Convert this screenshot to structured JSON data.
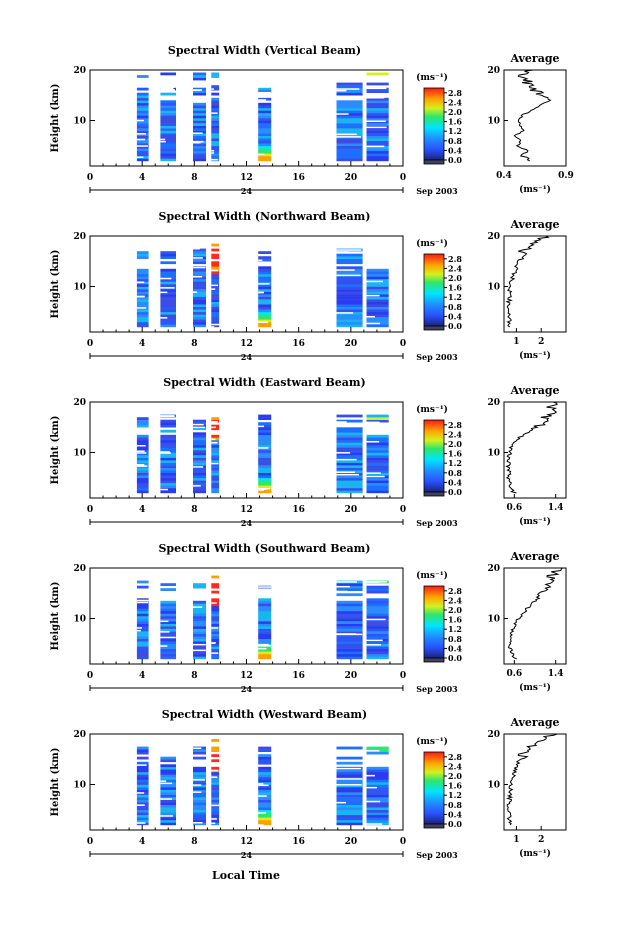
{
  "chart_data": [
    {
      "type": "heatmap",
      "title": "Spectral Width (Vertical Beam)",
      "ylabel": "Height (km)",
      "x_ticks": [
        "0",
        "4",
        "8",
        "12",
        "16",
        "20",
        "0"
      ],
      "y_ticks": [
        "20",
        "10"
      ],
      "xlim": [
        0,
        24
      ],
      "ylim": [
        1,
        20
      ],
      "date_label": "24",
      "month_label": "Sep 2003",
      "colorbar": {
        "unit": "(ms⁻¹)",
        "ticks": [
          "2.8",
          "2.4",
          "2.0",
          "1.6",
          "1.2",
          "0.8",
          "0.4",
          "0.0"
        ],
        "range": [
          0,
          3.0
        ]
      },
      "average": {
        "title": "Average",
        "xlabel": "(ms⁻¹)",
        "x_ticks": [
          "0.4",
          "0.9"
        ],
        "xlim": [
          0.4,
          0.9
        ],
        "y_ticks": [
          "20",
          "10"
        ],
        "height": [
          2,
          3,
          4,
          5,
          6,
          7,
          8,
          9,
          10,
          11,
          12,
          13,
          14,
          15,
          16,
          17,
          18,
          19,
          20
        ],
        "value": [
          0.62,
          0.55,
          0.58,
          0.52,
          0.54,
          0.5,
          0.55,
          0.53,
          0.5,
          0.55,
          0.62,
          0.7,
          0.78,
          0.72,
          0.65,
          0.6,
          0.58,
          0.55,
          0.6
        ]
      }
    },
    {
      "type": "heatmap",
      "title": "Spectral Width (Northward Beam)",
      "ylabel": "Height (km)",
      "x_ticks": [
        "0",
        "4",
        "8",
        "12",
        "16",
        "20",
        "0"
      ],
      "y_ticks": [
        "20",
        "10"
      ],
      "xlim": [
        0,
        24
      ],
      "ylim": [
        1,
        20
      ],
      "date_label": "24",
      "month_label": "Sep 2003",
      "colorbar": {
        "unit": "(ms⁻¹)",
        "ticks": [
          "2.8",
          "2.4",
          "2.0",
          "1.6",
          "1.2",
          "0.8",
          "0.4",
          "0.0"
        ],
        "range": [
          0,
          3.0
        ]
      },
      "average": {
        "title": "Average",
        "xlabel": "(ms⁻¹)",
        "x_ticks": [
          "1",
          "2"
        ],
        "xlim": [
          0.5,
          3.0
        ],
        "y_ticks": [
          "20",
          "10"
        ],
        "height": [
          2,
          3,
          4,
          5,
          6,
          7,
          8,
          9,
          10,
          11,
          12,
          13,
          14,
          15,
          16,
          17,
          18,
          19,
          20
        ],
        "value": [
          0.75,
          0.7,
          0.72,
          0.7,
          0.72,
          0.7,
          0.75,
          0.72,
          0.78,
          0.8,
          0.85,
          0.95,
          1.0,
          1.1,
          1.2,
          1.3,
          1.45,
          1.8,
          2.4
        ]
      }
    },
    {
      "type": "heatmap",
      "title": "Spectral Width (Eastward Beam)",
      "ylabel": "Height (km)",
      "x_ticks": [
        "0",
        "4",
        "8",
        "12",
        "16",
        "20",
        "0"
      ],
      "y_ticks": [
        "20",
        "10"
      ],
      "xlim": [
        0,
        24
      ],
      "ylim": [
        1,
        20
      ],
      "date_label": "24",
      "month_label": "Sep 2003",
      "colorbar": {
        "unit": "(ms⁻¹)",
        "ticks": [
          "2.8",
          "2.4",
          "2.0",
          "1.6",
          "1.2",
          "0.8",
          "0.4",
          "0.0"
        ],
        "range": [
          0,
          3.0
        ]
      },
      "average": {
        "title": "Average",
        "xlabel": "(ms⁻¹)",
        "x_ticks": [
          "0.6",
          "1.4"
        ],
        "xlim": [
          0.4,
          1.6
        ],
        "y_ticks": [
          "20",
          "10"
        ],
        "height": [
          2,
          3,
          4,
          5,
          6,
          7,
          8,
          9,
          10,
          11,
          12,
          13,
          14,
          15,
          16,
          17,
          18,
          19,
          20
        ],
        "value": [
          0.6,
          0.52,
          0.5,
          0.48,
          0.5,
          0.48,
          0.5,
          0.5,
          0.52,
          0.55,
          0.6,
          0.7,
          0.85,
          1.0,
          1.25,
          1.2,
          1.35,
          1.3,
          1.4
        ]
      }
    },
    {
      "type": "heatmap",
      "title": "Spectral Width (Southward Beam)",
      "ylabel": "Height (km)",
      "x_ticks": [
        "0",
        "4",
        "8",
        "12",
        "16",
        "20",
        "0"
      ],
      "y_ticks": [
        "20",
        "10"
      ],
      "xlim": [
        0,
        24
      ],
      "ylim": [
        1,
        20
      ],
      "date_label": "24",
      "month_label": "Sep 2003",
      "colorbar": {
        "unit": "(ms⁻¹)",
        "ticks": [
          "2.8",
          "2.4",
          "2.0",
          "1.6",
          "1.2",
          "0.8",
          "0.4",
          "0.0"
        ],
        "range": [
          0,
          3.0
        ]
      },
      "average": {
        "title": "Average",
        "xlabel": "(ms⁻¹)",
        "x_ticks": [
          "0.6",
          "1.4"
        ],
        "xlim": [
          0.4,
          1.6
        ],
        "y_ticks": [
          "20",
          "10"
        ],
        "height": [
          2,
          3,
          4,
          5,
          6,
          7,
          8,
          9,
          10,
          11,
          12,
          13,
          14,
          15,
          16,
          17,
          18,
          19,
          20
        ],
        "value": [
          0.62,
          0.55,
          0.52,
          0.5,
          0.52,
          0.55,
          0.58,
          0.62,
          0.68,
          0.75,
          0.85,
          0.95,
          1.05,
          1.1,
          1.2,
          1.25,
          1.3,
          1.35,
          1.45
        ]
      }
    },
    {
      "type": "heatmap",
      "title": "Spectral Width (Westward Beam)",
      "ylabel": "Height (km)",
      "xlabel": "Local Time",
      "x_ticks": [
        "0",
        "4",
        "8",
        "12",
        "16",
        "20",
        "0"
      ],
      "y_ticks": [
        "20",
        "10"
      ],
      "xlim": [
        0,
        24
      ],
      "ylim": [
        1,
        20
      ],
      "date_label": "24",
      "month_label": "Sep 2003",
      "colorbar": {
        "unit": "(ms⁻¹)",
        "ticks": [
          "2.8",
          "2.4",
          "2.0",
          "1.6",
          "1.2",
          "0.8",
          "0.4",
          "0.0"
        ],
        "range": [
          0,
          3.0
        ]
      },
      "average": {
        "title": "Average",
        "xlabel": "(ms⁻¹)",
        "x_ticks": [
          "1",
          "2"
        ],
        "xlim": [
          0.5,
          3.0
        ],
        "y_ticks": [
          "20",
          "10"
        ],
        "height": [
          2,
          3,
          4,
          5,
          6,
          7,
          8,
          9,
          10,
          11,
          12,
          13,
          14,
          15,
          16,
          17,
          18,
          19,
          20
        ],
        "value": [
          0.75,
          0.72,
          0.7,
          0.72,
          0.7,
          0.72,
          0.75,
          0.78,
          0.8,
          0.85,
          0.9,
          0.95,
          1.05,
          1.15,
          1.3,
          1.5,
          1.7,
          2.0,
          2.5
        ]
      }
    }
  ]
}
